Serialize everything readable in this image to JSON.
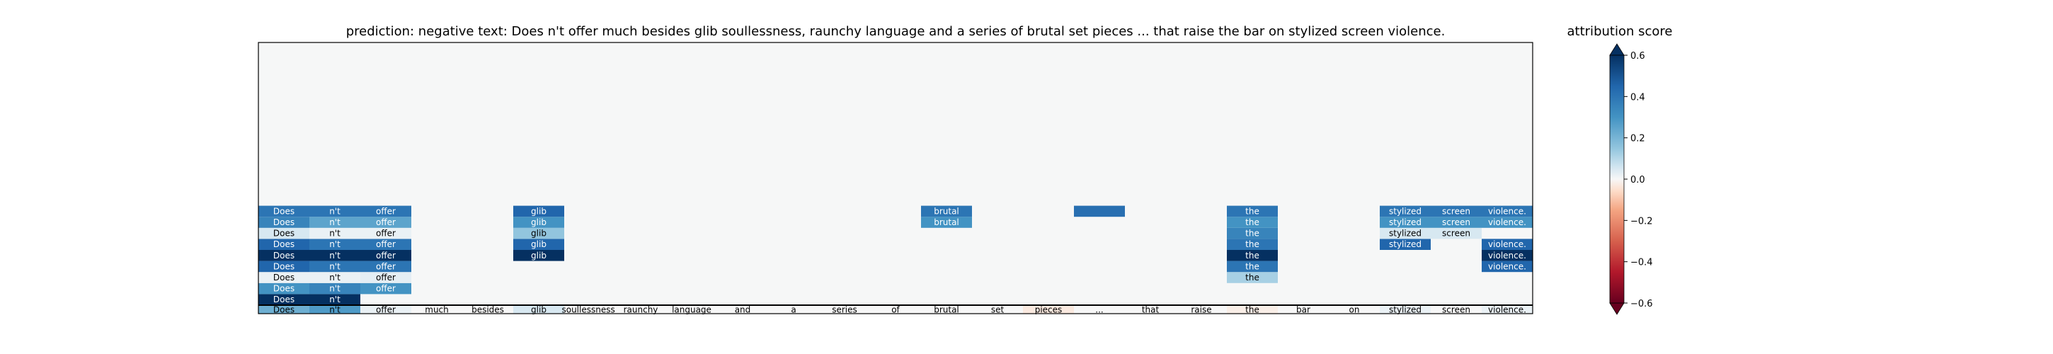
{
  "chart_data": {
    "type": "heatmap",
    "title": "prediction:  negative     text:  Does n't offer much besides glib soullessness, raunchy language and a series of brutal set pieces ... that raise the bar on stylized screen violence.",
    "tokens": [
      "Does",
      "n't",
      "offer",
      "much",
      "besides",
      "glib",
      "soullessness,",
      "raunchy",
      "language",
      "and",
      "a",
      "series",
      "of",
      "brutal",
      "set",
      "pieces",
      "...",
      "that",
      "raise",
      "the",
      "bar",
      "on",
      "stylized",
      "screen",
      "violence."
    ],
    "token_row": [
      0.22,
      0.28,
      0.02,
      0.0,
      0.0,
      0.05,
      0.0,
      0.0,
      0.0,
      0.0,
      0.0,
      0.0,
      0.0,
      0.0,
      0.0,
      -0.03,
      0.0,
      0.0,
      0.0,
      -0.02,
      0.0,
      0.0,
      0.02,
      0.0,
      0.02
    ],
    "rows_from_bottom": [
      [
        [
          0,
          0.6
        ],
        [
          1,
          0.6
        ]
      ],
      [
        [
          0,
          0.3
        ],
        [
          1,
          0.35
        ],
        [
          2,
          0.3
        ]
      ],
      [
        [
          0,
          0.02
        ],
        [
          1,
          0.02
        ],
        [
          2,
          0.03
        ],
        [
          19,
          0.12
        ]
      ],
      [
        [
          0,
          0.45
        ],
        [
          1,
          0.4
        ],
        [
          2,
          0.4
        ],
        [
          19,
          0.4
        ],
        [
          24,
          0.45
        ]
      ],
      [
        [
          0,
          0.6
        ],
        [
          1,
          0.6
        ],
        [
          2,
          0.6
        ],
        [
          5,
          0.6
        ],
        [
          19,
          0.6
        ],
        [
          24,
          0.6
        ]
      ],
      [
        [
          0,
          0.45
        ],
        [
          1,
          0.4
        ],
        [
          2,
          0.4
        ],
        [
          5,
          0.45
        ],
        [
          19,
          0.4
        ],
        [
          22,
          0.45
        ],
        [
          24,
          0.45
        ]
      ],
      [
        [
          0,
          0.05
        ],
        [
          1,
          0.02
        ],
        [
          2,
          0.02
        ],
        [
          5,
          0.15
        ],
        [
          19,
          0.35
        ],
        [
          22,
          0.05
        ],
        [
          23,
          0.05
        ]
      ],
      [
        [
          0,
          0.35
        ],
        [
          1,
          0.25
        ],
        [
          2,
          0.25
        ],
        [
          5,
          0.3
        ],
        [
          13,
          0.3
        ],
        [
          19,
          0.3
        ],
        [
          22,
          0.3
        ],
        [
          23,
          0.3
        ],
        [
          24,
          0.3
        ]
      ],
      [
        [
          0,
          0.4
        ],
        [
          1,
          0.4
        ],
        [
          2,
          0.4
        ],
        [
          5,
          0.45
        ],
        [
          13,
          0.4
        ],
        [
          16,
          0.42
        ],
        [
          19,
          0.4
        ],
        [
          22,
          0.4
        ],
        [
          23,
          0.4
        ],
        [
          24,
          0.4
        ]
      ]
    ],
    "colorbar": {
      "label": "attribution score",
      "min": -0.6,
      "max": 0.6,
      "ticks": [
        0.6,
        0.4,
        0.2,
        0.0,
        -0.2,
        -0.4,
        -0.6
      ],
      "tick_labels": [
        "0.6",
        "0.4",
        "0.2",
        "0.0",
        "−0.2",
        "−0.4",
        "−0.6"
      ]
    },
    "colormap": "RdBu",
    "grid": false
  }
}
